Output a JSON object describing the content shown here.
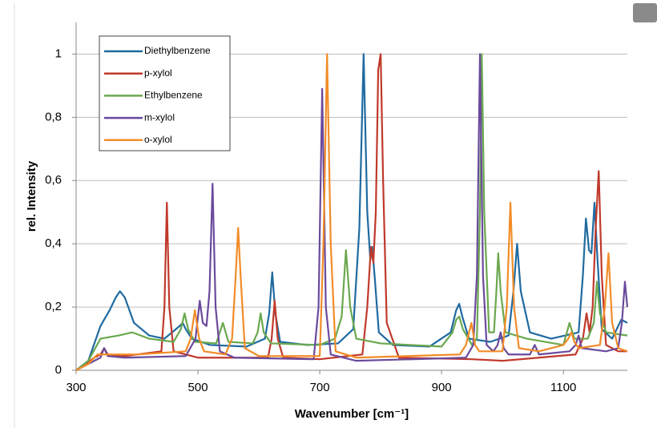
{
  "chart_data": {
    "type": "line",
    "x_label": "Wavenumber [cm⁻¹]",
    "y_label": "rel. Intensity",
    "xlim": [
      300,
      1205
    ],
    "ylim": [
      0,
      1.1
    ],
    "xticks": [
      300,
      500,
      700,
      900,
      1100
    ],
    "yticks": [
      0,
      {
        "value": 0.2,
        "label": "0,2"
      },
      {
        "value": 0.4,
        "label": "0,4"
      },
      {
        "value": 0.6,
        "label": "0,6"
      },
      {
        "value": 0.8,
        "label": "0,8"
      },
      1
    ],
    "grid": true,
    "legend": "upper left",
    "series": [
      {
        "name": "Diethylbenzene",
        "color": "#1f6aa0",
        "x": [
          300,
          320,
          340,
          355,
          365,
          372,
          380,
          395,
          420,
          445,
          470,
          475,
          480,
          490,
          520,
          580,
          610,
          617,
          622,
          627,
          635,
          680,
          730,
          755,
          765,
          772,
          778,
          783,
          786,
          790,
          797,
          820,
          880,
          915,
          924,
          929,
          934,
          945,
          980,
          1010,
          1018,
          1024,
          1030,
          1045,
          1080,
          1125,
          1132,
          1137,
          1142,
          1146,
          1151,
          1156,
          1163,
          1180,
          1195,
          1205
        ],
        "values": [
          0,
          0.03,
          0.14,
          0.19,
          0.23,
          0.25,
          0.23,
          0.15,
          0.11,
          0.1,
          0.14,
          0.15,
          0.13,
          0.1,
          0.08,
          0.075,
          0.1,
          0.18,
          0.31,
          0.18,
          0.09,
          0.08,
          0.085,
          0.13,
          0.45,
          1.0,
          0.5,
          0.35,
          0.39,
          0.3,
          0.12,
          0.08,
          0.075,
          0.12,
          0.19,
          0.21,
          0.17,
          0.1,
          0.09,
          0.11,
          0.25,
          0.4,
          0.25,
          0.12,
          0.1,
          0.12,
          0.3,
          0.48,
          0.38,
          0.37,
          0.53,
          0.35,
          0.13,
          0.1,
          0.16,
          0.15
        ]
      },
      {
        "name": "p-xylol",
        "color": "#c0392b",
        "x": [
          300,
          330,
          340,
          346,
          352,
          380,
          440,
          445,
          449,
          453,
          460,
          500,
          615,
          621,
          626,
          631,
          640,
          700,
          770,
          778,
          784,
          788,
          792,
          796,
          800,
          804,
          810,
          830,
          950,
          1000,
          1120,
          1132,
          1138,
          1143,
          1148,
          1153,
          1158,
          1163,
          1170,
          1190,
          1205
        ],
        "values": [
          0,
          0.04,
          0.05,
          0.07,
          0.05,
          0.045,
          0.06,
          0.2,
          0.53,
          0.2,
          0.06,
          0.04,
          0.04,
          0.1,
          0.22,
          0.1,
          0.04,
          0.035,
          0.05,
          0.2,
          0.39,
          0.34,
          0.5,
          0.95,
          1.0,
          0.6,
          0.15,
          0.04,
          0.035,
          0.03,
          0.05,
          0.1,
          0.18,
          0.12,
          0.2,
          0.45,
          0.63,
          0.3,
          0.08,
          0.06,
          0.06
        ]
      },
      {
        "name": "Ethylbenzene",
        "color": "#6aa84f",
        "x": [
          300,
          320,
          340,
          370,
          392,
          420,
          460,
          472,
          478,
          484,
          495,
          530,
          541,
          550,
          590,
          598,
          603,
          608,
          620,
          700,
          725,
          736,
          743,
          750,
          760,
          800,
          900,
          918,
          924,
          929,
          935,
          950,
          958,
          963,
          966,
          970,
          978,
          986,
          990,
          993,
          997,
          1005,
          1040,
          1100,
          1110,
          1118,
          1140,
          1150,
          1155,
          1160,
          1170,
          1205
        ],
        "values": [
          0,
          0.03,
          0.1,
          0.11,
          0.12,
          0.1,
          0.09,
          0.13,
          0.18,
          0.13,
          0.09,
          0.085,
          0.15,
          0.09,
          0.085,
          0.12,
          0.18,
          0.12,
          0.085,
          0.08,
          0.1,
          0.17,
          0.38,
          0.2,
          0.1,
          0.085,
          0.075,
          0.12,
          0.16,
          0.17,
          0.13,
          0.08,
          0.1,
          0.5,
          1.0,
          0.5,
          0.12,
          0.12,
          0.25,
          0.37,
          0.25,
          0.12,
          0.1,
          0.08,
          0.15,
          0.1,
          0.1,
          0.15,
          0.28,
          0.18,
          0.12,
          0.11
        ]
      },
      {
        "name": "m-xylol",
        "color": "#6a4a9c",
        "x": [
          300,
          330,
          340,
          346,
          352,
          380,
          480,
          496,
          503,
          508,
          514,
          519,
          524,
          529,
          536,
          560,
          690,
          698,
          704,
          710,
          718,
          760,
          940,
          952,
          958,
          963,
          968,
          974,
          985,
          992,
          997,
          1002,
          1010,
          1045,
          1053,
          1060,
          1110,
          1120,
          1125,
          1130,
          1170,
          1190,
          1196,
          1201,
          1205
        ],
        "values": [
          0,
          0.03,
          0.04,
          0.07,
          0.045,
          0.04,
          0.045,
          0.1,
          0.22,
          0.15,
          0.14,
          0.25,
          0.59,
          0.2,
          0.06,
          0.04,
          0.035,
          0.2,
          0.89,
          0.2,
          0.05,
          0.03,
          0.04,
          0.08,
          0.3,
          1.0,
          0.3,
          0.08,
          0.06,
          0.08,
          0.12,
          0.07,
          0.05,
          0.05,
          0.08,
          0.05,
          0.06,
          0.08,
          0.11,
          0.07,
          0.06,
          0.07,
          0.15,
          0.28,
          0.2
        ]
      },
      {
        "name": "o-xylol",
        "color": "#f28c28",
        "x": [
          300,
          320,
          335,
          400,
          480,
          488,
          495,
          502,
          510,
          545,
          556,
          562,
          566,
          570,
          577,
          600,
          700,
          706,
          712,
          718,
          726,
          760,
          930,
          940,
          949,
          955,
          962,
          1000,
          1007,
          1013,
          1019,
          1027,
          1060,
          1100,
          1108,
          1113,
          1118,
          1125,
          1160,
          1168,
          1174,
          1180,
          1190,
          1205
        ],
        "values": [
          0,
          0.02,
          0.05,
          0.05,
          0.06,
          0.1,
          0.19,
          0.1,
          0.06,
          0.05,
          0.1,
          0.3,
          0.45,
          0.3,
          0.07,
          0.045,
          0.045,
          0.4,
          1.0,
          0.4,
          0.06,
          0.04,
          0.05,
          0.08,
          0.15,
          0.08,
          0.06,
          0.06,
          0.2,
          0.53,
          0.2,
          0.07,
          0.06,
          0.08,
          0.1,
          0.12,
          0.09,
          0.07,
          0.08,
          0.2,
          0.37,
          0.15,
          0.07,
          0.06
        ]
      }
    ]
  }
}
